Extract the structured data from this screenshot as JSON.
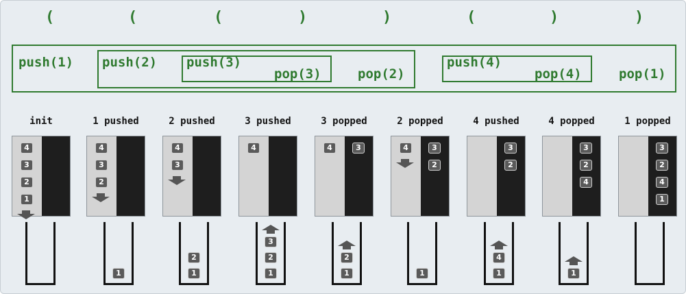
{
  "parens": [
    "(",
    "(",
    "(",
    ")",
    ")",
    "(",
    ")",
    ")"
  ],
  "operations": {
    "push1": "push(1)",
    "push2": "push(2)",
    "push3": "push(3)",
    "pop3": "pop(3)",
    "pop2": "pop(2)",
    "push4": "push(4)",
    "pop4": "pop(4)",
    "pop1": "pop(1)"
  },
  "stages": [
    {
      "label": "init",
      "input": [
        "4",
        "3",
        "2",
        "1"
      ],
      "output": [],
      "stack": [],
      "input_arrow": "down",
      "stack_arrow": "none"
    },
    {
      "label": "1 pushed",
      "input": [
        "4",
        "3",
        "2"
      ],
      "output": [],
      "stack": [
        "1"
      ],
      "input_arrow": "down",
      "stack_arrow": "none"
    },
    {
      "label": "2 pushed",
      "input": [
        "4",
        "3"
      ],
      "output": [],
      "stack": [
        "2",
        "1"
      ],
      "input_arrow": "down",
      "stack_arrow": "none"
    },
    {
      "label": "3 pushed",
      "input": [
        "4"
      ],
      "output": [],
      "stack": [
        "3",
        "2",
        "1"
      ],
      "input_arrow": "none",
      "stack_arrow": "up"
    },
    {
      "label": "3 popped",
      "input": [
        "4"
      ],
      "output": [
        "3"
      ],
      "stack": [
        "2",
        "1"
      ],
      "input_arrow": "none",
      "stack_arrow": "up"
    },
    {
      "label": "2 popped",
      "input": [
        "4"
      ],
      "output": [
        "3",
        "2"
      ],
      "stack": [
        "1"
      ],
      "input_arrow": "down",
      "stack_arrow": "none"
    },
    {
      "label": "4 pushed",
      "input": [],
      "output": [
        "3",
        "2"
      ],
      "stack": [
        "4",
        "1"
      ],
      "input_arrow": "none",
      "stack_arrow": "up"
    },
    {
      "label": "4 popped",
      "input": [],
      "output": [
        "3",
        "2",
        "4"
      ],
      "stack": [
        "1"
      ],
      "input_arrow": "none",
      "stack_arrow": "up"
    },
    {
      "label": "1 popped",
      "input": [],
      "output": [
        "3",
        "2",
        "4",
        "1"
      ],
      "stack": [],
      "input_arrow": "none",
      "stack_arrow": "none"
    }
  ],
  "colors": {
    "green": "#2f7a2f",
    "panel_light": "#d4d4d4",
    "panel_dark": "#1e1e1e",
    "chip": "#5a5a5a",
    "arrow": "#555555"
  }
}
